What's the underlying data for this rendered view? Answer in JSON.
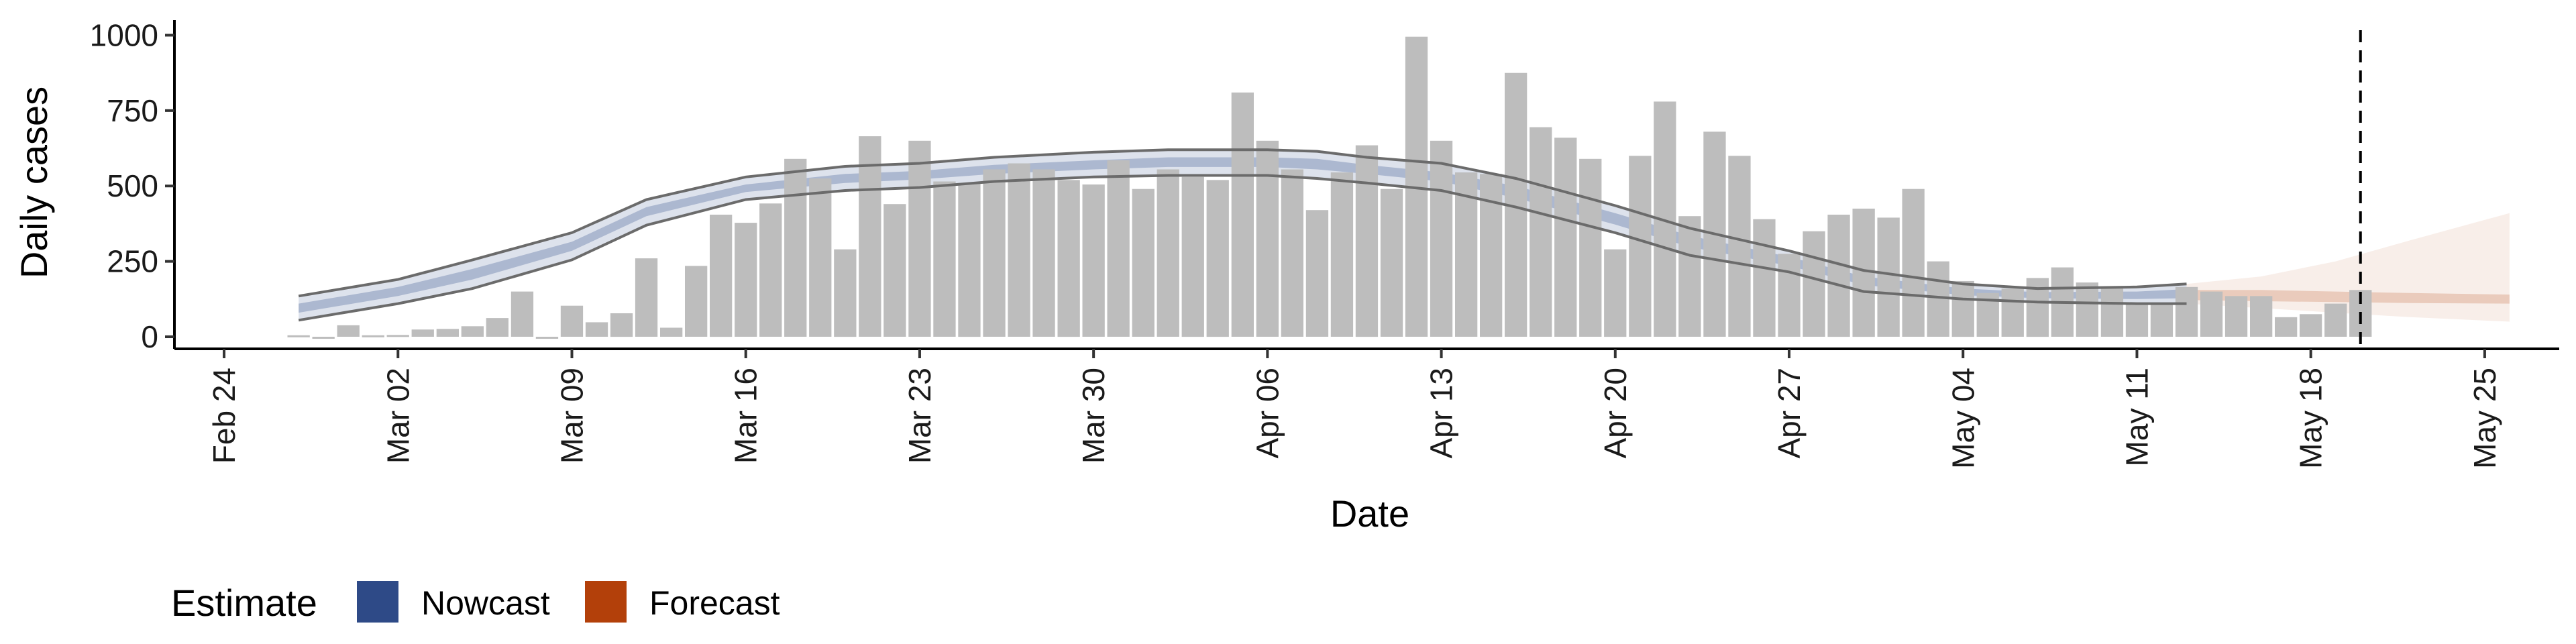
{
  "chart_data": {
    "type": "bar",
    "xlabel": "Date",
    "ylabel": "Daily cases",
    "xlim": [
      "2020-02-22",
      "2020-05-28"
    ],
    "ylim": [
      -40,
      1050
    ],
    "x_ticks": [
      "2020-02-24",
      "2020-03-02",
      "2020-03-09",
      "2020-03-16",
      "2020-03-23",
      "2020-03-30",
      "2020-04-06",
      "2020-04-13",
      "2020-04-20",
      "2020-04-27",
      "2020-05-04",
      "2020-05-11",
      "2020-05-18",
      "2020-05-25"
    ],
    "x_tick_labels": [
      "Feb 24",
      "Mar 02",
      "Mar 09",
      "Mar 16",
      "Mar 23",
      "Mar 30",
      "Apr 06",
      "Apr 13",
      "Apr 20",
      "Apr 27",
      "May 04",
      "May 11",
      "May 18",
      "May 25"
    ],
    "y_ticks": [
      0,
      250,
      500,
      750,
      1000
    ],
    "y_tick_labels": [
      "0",
      "250",
      "500",
      "750",
      "1000"
    ],
    "vline_date": "2020-05-20",
    "bars": {
      "start_date": "2020-02-27",
      "values": [
        5,
        0,
        38,
        5,
        6,
        24,
        26,
        35,
        62,
        150,
        0,
        103,
        48,
        78,
        260,
        30,
        235,
        405,
        378,
        442,
        590,
        525,
        290,
        665,
        440,
        650,
        515,
        510,
        555,
        575,
        555,
        520,
        505,
        585,
        490,
        555,
        530,
        520,
        810,
        650,
        555,
        420,
        545,
        635,
        490,
        995,
        650,
        545,
        540,
        875,
        695,
        660,
        590,
        290,
        600,
        780,
        400,
        680,
        600,
        390,
        275,
        350,
        405,
        425,
        395,
        490,
        250,
        185,
        145,
        160,
        195,
        230,
        180,
        160,
        110,
        110,
        165,
        150,
        135,
        135,
        65,
        75,
        110,
        155
      ],
      "color": "#bdbdbd"
    },
    "nowcast_band": {
      "dates": [
        "2020-02-27",
        "2020-03-02",
        "2020-03-05",
        "2020-03-09",
        "2020-03-12",
        "2020-03-16",
        "2020-03-20",
        "2020-03-23",
        "2020-03-26",
        "2020-03-30",
        "2020-04-02",
        "2020-04-06",
        "2020-04-08",
        "2020-04-10",
        "2020-04-13",
        "2020-04-16",
        "2020-04-20",
        "2020-04-23",
        "2020-04-27",
        "2020-04-30",
        "2020-05-04",
        "2020-05-07",
        "2020-05-11",
        "2020-05-13"
      ],
      "outer_upper": [
        135,
        190,
        255,
        345,
        455,
        530,
        565,
        575,
        595,
        612,
        620,
        620,
        615,
        595,
        575,
        525,
        435,
        360,
        285,
        220,
        175,
        160,
        165,
        175
      ],
      "outer_lower": [
        55,
        110,
        160,
        255,
        370,
        455,
        485,
        495,
        515,
        530,
        535,
        535,
        525,
        510,
        485,
        430,
        345,
        270,
        215,
        150,
        125,
        115,
        110,
        110
      ],
      "inner_upper": [
        110,
        165,
        225,
        315,
        430,
        505,
        540,
        550,
        570,
        585,
        595,
        595,
        590,
        570,
        545,
        500,
        410,
        335,
        265,
        200,
        160,
        148,
        150,
        158
      ],
      "inner_lower": [
        80,
        135,
        190,
        285,
        400,
        480,
        510,
        522,
        540,
        555,
        563,
        563,
        555,
        540,
        515,
        460,
        372,
        298,
        235,
        172,
        138,
        128,
        125,
        128
      ],
      "color": "#2e4a87"
    },
    "forecast_band": {
      "dates": [
        "2020-05-13",
        "2020-05-16",
        "2020-05-19",
        "2020-05-22",
        "2020-05-26"
      ],
      "outer_upper": [
        175,
        200,
        250,
        320,
        410
      ],
      "outer_lower": [
        110,
        95,
        80,
        65,
        50
      ],
      "inner_upper": [
        155,
        155,
        150,
        145,
        140
      ],
      "inner_lower": [
        122,
        118,
        115,
        112,
        110
      ],
      "color": "#b3400a"
    },
    "legend": {
      "title": "Estimate",
      "items": [
        {
          "label": "Nowcast",
          "color": "#2e4a87"
        },
        {
          "label": "Forecast",
          "color": "#b3400a"
        }
      ],
      "position": "bottom-left"
    },
    "grid": false
  }
}
